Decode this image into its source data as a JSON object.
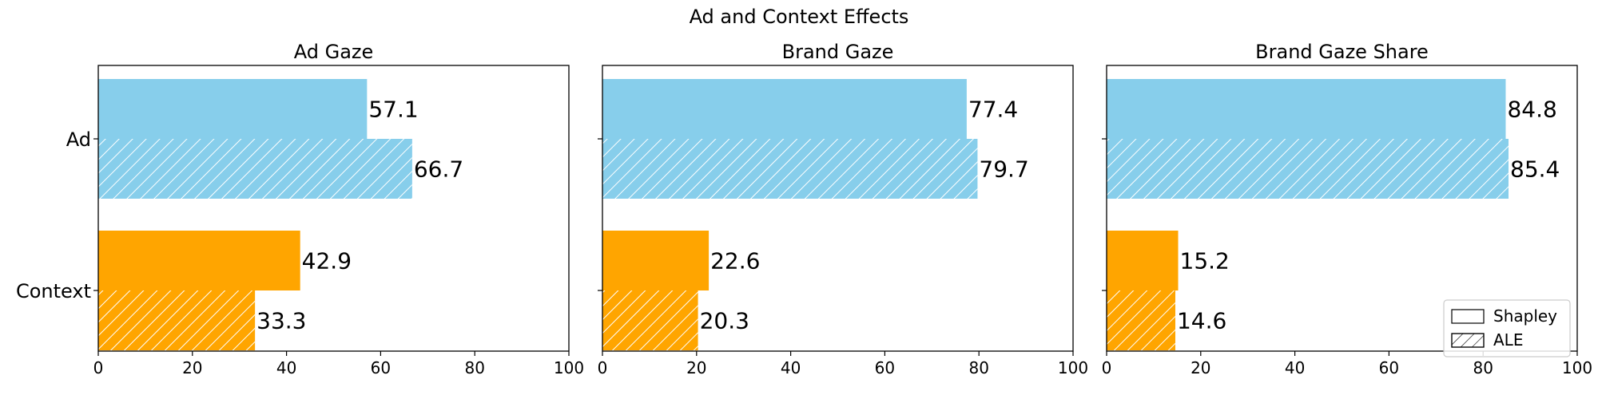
{
  "chart_data": {
    "type": "bar",
    "orientation": "horizontal",
    "title": "Ad and Context Effects",
    "categories": [
      "Ad",
      "Context"
    ],
    "xlim": [
      0,
      100
    ],
    "xticks": [
      0,
      20,
      40,
      60,
      80,
      100
    ],
    "colors": {
      "Ad": "#87CEEB",
      "Context": "#FFA500"
    },
    "legend": {
      "placement": "bottom-right",
      "entries": [
        {
          "label": "Shapley",
          "hatch": false
        },
        {
          "label": "ALE",
          "hatch": true
        }
      ]
    },
    "panels": [
      {
        "title": "Ad Gaze",
        "show_category_labels": true,
        "series": [
          {
            "name": "Shapley",
            "values": [
              57.1,
              42.9
            ]
          },
          {
            "name": "ALE",
            "values": [
              66.7,
              33.3
            ]
          }
        ]
      },
      {
        "title": "Brand Gaze",
        "show_category_labels": false,
        "series": [
          {
            "name": "Shapley",
            "values": [
              77.4,
              22.6
            ]
          },
          {
            "name": "ALE",
            "values": [
              79.7,
              20.3
            ]
          }
        ]
      },
      {
        "title": "Brand Gaze Share",
        "show_category_labels": false,
        "show_legend": true,
        "series": [
          {
            "name": "Shapley",
            "values": [
              84.8,
              15.2
            ]
          },
          {
            "name": "ALE",
            "values": [
              85.4,
              14.6
            ]
          }
        ]
      }
    ]
  }
}
